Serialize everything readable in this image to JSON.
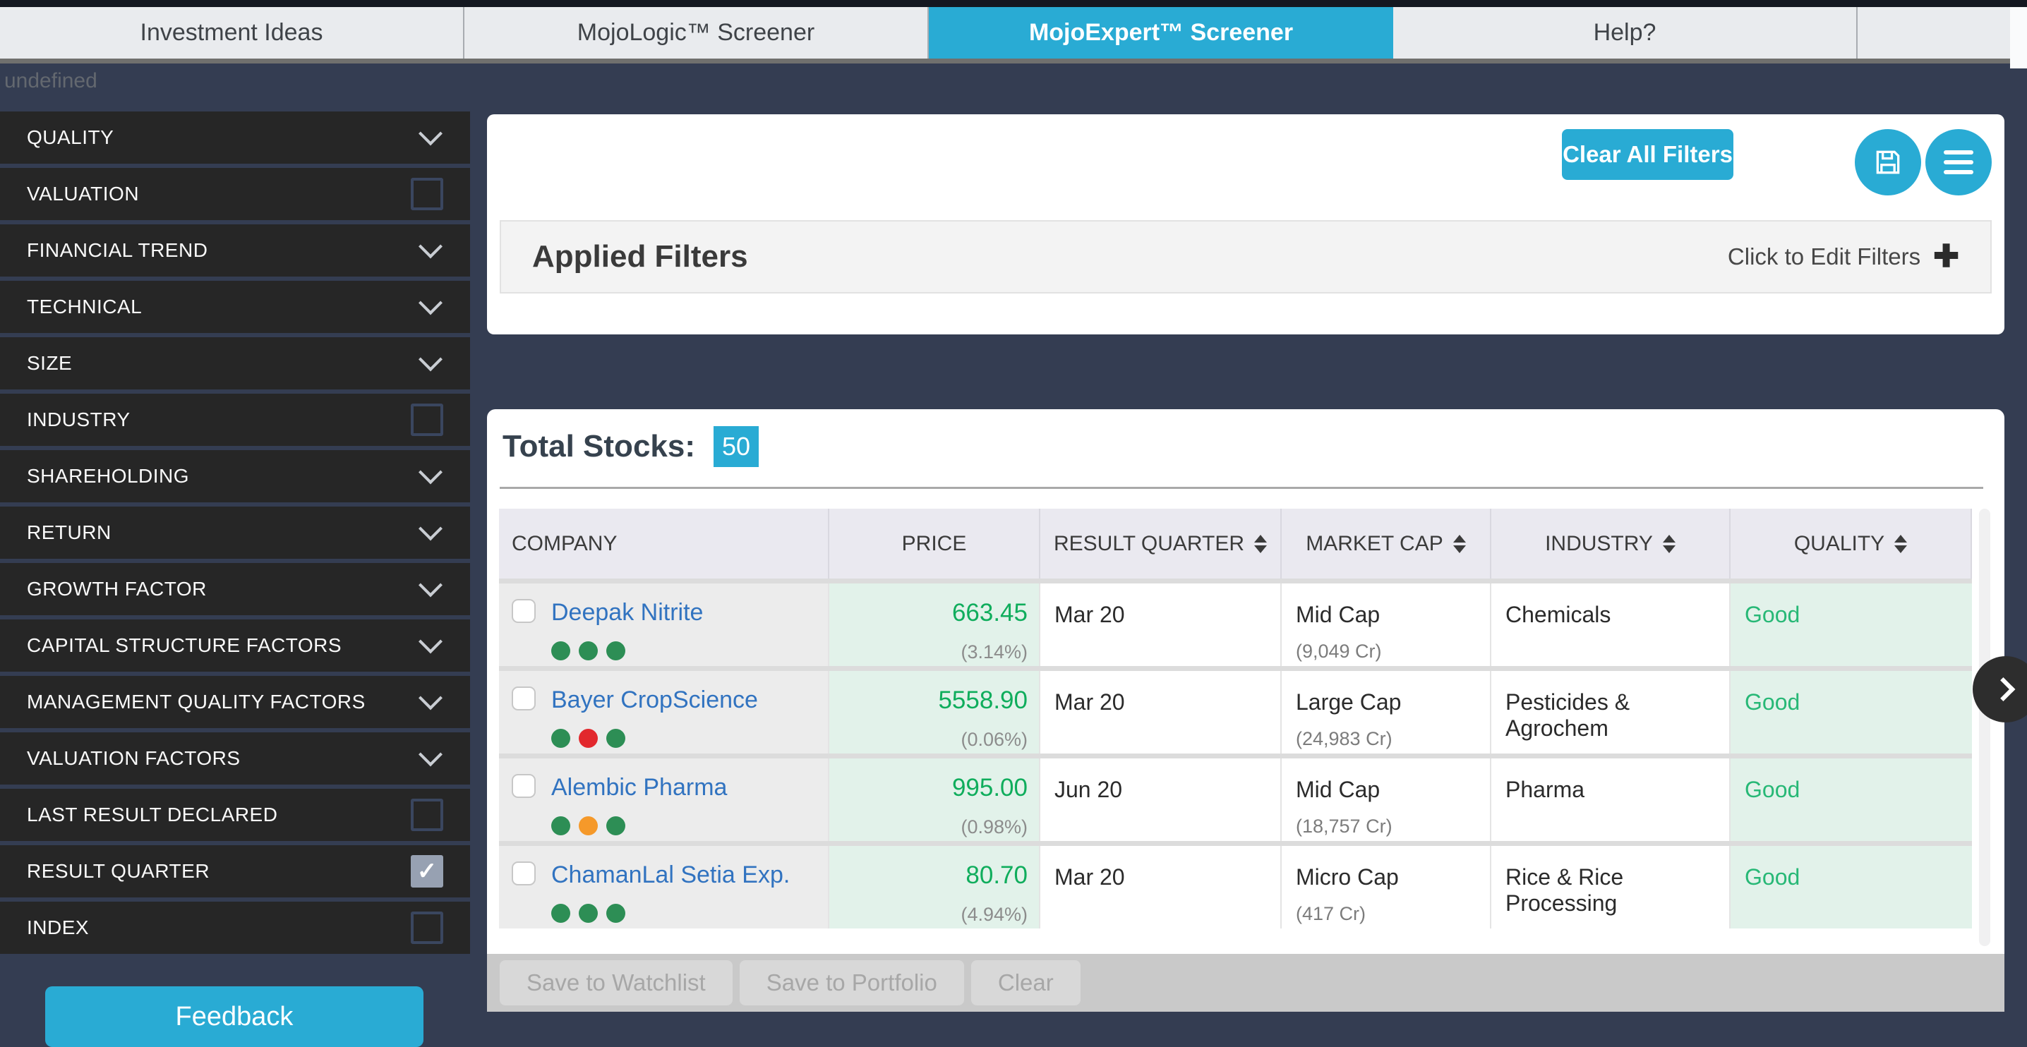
{
  "nav": {
    "tabs": [
      {
        "label": "Investment Ideas",
        "active": false
      },
      {
        "label": "MojoLogic™ Screener",
        "active": false
      },
      {
        "label": "MojoExpert™ Screener",
        "active": true
      },
      {
        "label": "Help?",
        "active": false
      }
    ]
  },
  "misc": {
    "undefined_text": "undefined"
  },
  "sidebar": {
    "items": [
      {
        "label": "QUALITY",
        "control": "chevron"
      },
      {
        "label": "VALUATION",
        "control": "checkbox",
        "checked": false
      },
      {
        "label": "FINANCIAL TREND",
        "control": "chevron"
      },
      {
        "label": "TECHNICAL",
        "control": "chevron"
      },
      {
        "label": "SIZE",
        "control": "chevron"
      },
      {
        "label": "INDUSTRY",
        "control": "checkbox",
        "checked": false
      },
      {
        "label": "SHAREHOLDING",
        "control": "chevron"
      },
      {
        "label": "RETURN",
        "control": "chevron"
      },
      {
        "label": "GROWTH FACTOR",
        "control": "chevron"
      },
      {
        "label": "CAPITAL STRUCTURE FACTORS",
        "control": "chevron"
      },
      {
        "label": "MANAGEMENT QUALITY FACTORS",
        "control": "chevron"
      },
      {
        "label": "VALUATION FACTORS",
        "control": "chevron"
      },
      {
        "label": "LAST RESULT DECLARED",
        "control": "checkbox",
        "checked": false
      },
      {
        "label": "RESULT QUARTER",
        "control": "checkbox",
        "checked": true
      },
      {
        "label": "INDEX",
        "control": "checkbox",
        "checked": false
      }
    ],
    "feedback_label": "Feedback"
  },
  "toolbar": {
    "clear_all_label": "Clear All Filters",
    "save_icon": "floppy-disk",
    "menu_icon": "hamburger-menu"
  },
  "applied_filters": {
    "title": "Applied Filters",
    "edit_label": "Click to Edit Filters",
    "edit_icon": "plus"
  },
  "results": {
    "total_label": "Total Stocks:",
    "total_count": "50"
  },
  "table": {
    "columns": [
      {
        "label": "COMPANY",
        "sortable": false
      },
      {
        "label": "PRICE",
        "sortable": false
      },
      {
        "label": "RESULT QUARTER",
        "sortable": true
      },
      {
        "label": "MARKET CAP",
        "sortable": true
      },
      {
        "label": "INDUSTRY",
        "sortable": true
      },
      {
        "label": "QUALITY",
        "sortable": true
      }
    ],
    "rows": [
      {
        "company": "Deepak Nitrite",
        "dots": [
          "green",
          "green",
          "green"
        ],
        "price": "663.45",
        "change": "(3.14%)",
        "quarter": "Mar 20",
        "cap": "Mid Cap",
        "cap_value": "(9,049 Cr)",
        "industry": "Chemicals",
        "quality": "Good"
      },
      {
        "company": "Bayer CropScience",
        "dots": [
          "green",
          "red",
          "green"
        ],
        "price": "5558.90",
        "change": "(0.06%)",
        "quarter": "Mar 20",
        "cap": "Large Cap",
        "cap_value": "(24,983 Cr)",
        "industry": "Pesticides & Agrochem",
        "quality": "Good"
      },
      {
        "company": "Alembic Pharma",
        "dots": [
          "green",
          "orange",
          "green"
        ],
        "price": "995.00",
        "change": "(0.98%)",
        "quarter": "Jun 20",
        "cap": "Mid Cap",
        "cap_value": "(18,757 Cr)",
        "industry": "Pharma",
        "quality": "Good"
      },
      {
        "company": "ChamanLal Setia Exp.",
        "dots": [
          "green",
          "green",
          "green"
        ],
        "price": "80.70",
        "change": "(4.94%)",
        "quarter": "Mar 20",
        "cap": "Micro Cap",
        "cap_value": "(417 Cr)",
        "industry": "Rice & Rice Processing",
        "quality": "Good"
      }
    ]
  },
  "footer": {
    "buttons": [
      "Save to Watchlist",
      "Save to Portfolio",
      "Clear"
    ]
  },
  "colors": {
    "accent_cyan": "#29abd4",
    "price_green": "#0fad5c",
    "quality_green": "#27b876",
    "link_blue": "#3173c0",
    "dot_green": "#2d8e55",
    "dot_red": "#e2282d",
    "dot_orange": "#f5992a",
    "navy_bg": "#343d52",
    "sidebar_dark": "#262626",
    "mint_cell": "#e2f2ea"
  }
}
